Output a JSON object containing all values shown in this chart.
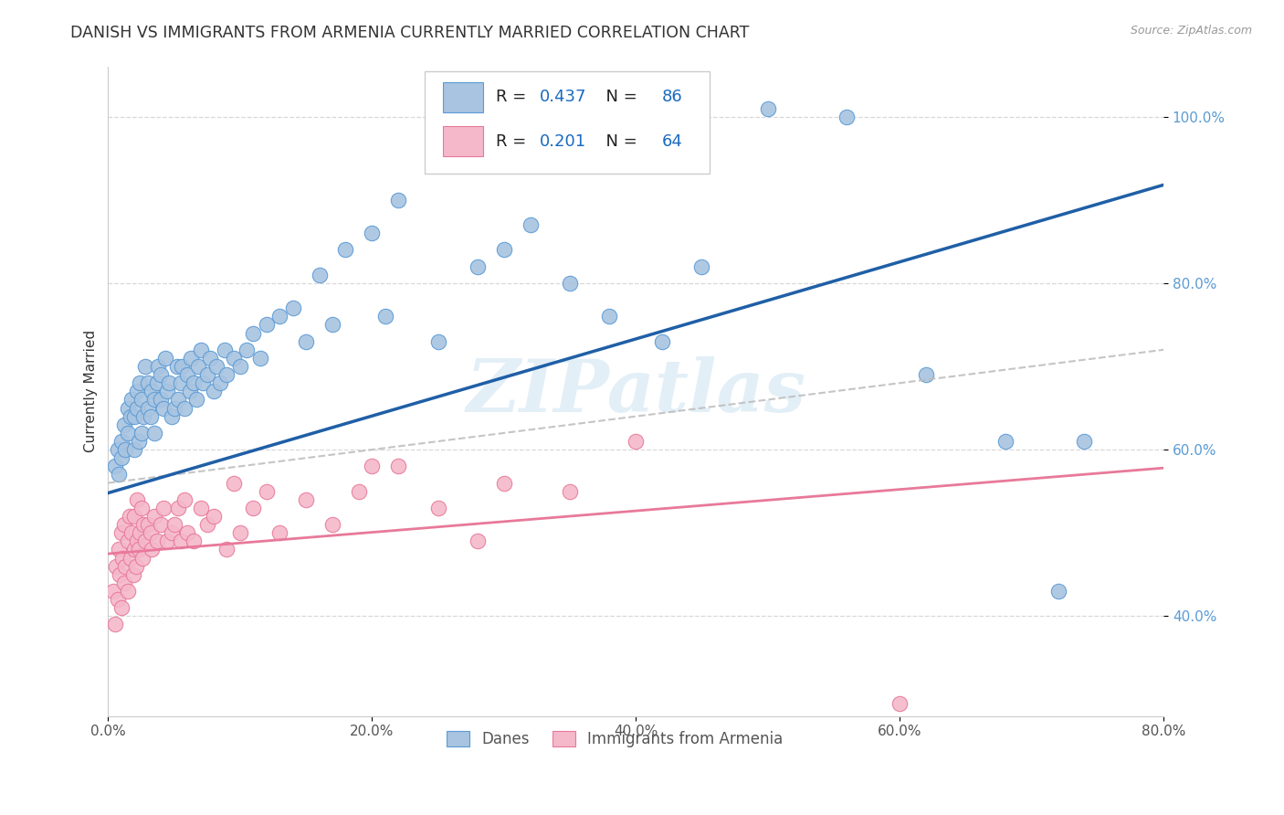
{
  "title": "DANISH VS IMMIGRANTS FROM ARMENIA CURRENTLY MARRIED CORRELATION CHART",
  "source": "Source: ZipAtlas.com",
  "ylabel": "Currently Married",
  "xlim": [
    0.0,
    0.8
  ],
  "ylim": [
    0.28,
    1.06
  ],
  "xtick_positions": [
    0.0,
    0.2,
    0.4,
    0.6,
    0.8
  ],
  "ytick_positions": [
    0.4,
    0.6,
    0.8,
    1.0
  ],
  "danes_color": "#a8c4e0",
  "danes_edge_color": "#5b9bd5",
  "armenia_color": "#f4b8ca",
  "armenia_edge_color": "#e8799a",
  "regression_blue": "#1f5fa6",
  "regression_pink": "#e8799a",
  "regression_gray_dashed": "#bbbbbb",
  "R_danes": 0.437,
  "N_danes": 86,
  "R_armenia": 0.201,
  "N_armenia": 64,
  "watermark": "ZIPatlas",
  "legend_labels": [
    "Danes",
    "Immigrants from Armenia"
  ],
  "blue_line_x0": 0.0,
  "blue_line_y0": 0.548,
  "blue_line_x1": 0.8,
  "blue_line_y1": 0.918,
  "pink_line_x0": 0.0,
  "pink_line_y0": 0.475,
  "pink_line_x1": 0.8,
  "pink_line_y1": 0.578,
  "gray_line_x0": 0.0,
  "gray_line_y0": 0.56,
  "gray_line_x1": 0.8,
  "gray_line_y1": 0.72,
  "danes_x": [
    0.005,
    0.007,
    0.008,
    0.01,
    0.01,
    0.012,
    0.013,
    0.015,
    0.015,
    0.017,
    0.018,
    0.02,
    0.02,
    0.022,
    0.022,
    0.023,
    0.024,
    0.025,
    0.025,
    0.027,
    0.028,
    0.03,
    0.03,
    0.032,
    0.033,
    0.035,
    0.035,
    0.037,
    0.038,
    0.04,
    0.04,
    0.042,
    0.043,
    0.045,
    0.046,
    0.048,
    0.05,
    0.052,
    0.053,
    0.055,
    0.056,
    0.058,
    0.06,
    0.062,
    0.063,
    0.065,
    0.067,
    0.068,
    0.07,
    0.072,
    0.075,
    0.077,
    0.08,
    0.082,
    0.085,
    0.088,
    0.09,
    0.095,
    0.1,
    0.105,
    0.11,
    0.115,
    0.12,
    0.13,
    0.14,
    0.15,
    0.16,
    0.17,
    0.18,
    0.2,
    0.21,
    0.22,
    0.25,
    0.28,
    0.3,
    0.32,
    0.35,
    0.38,
    0.42,
    0.45,
    0.5,
    0.56,
    0.62,
    0.68,
    0.72,
    0.74
  ],
  "danes_y": [
    0.58,
    0.6,
    0.57,
    0.59,
    0.61,
    0.63,
    0.6,
    0.65,
    0.62,
    0.64,
    0.66,
    0.6,
    0.64,
    0.65,
    0.67,
    0.61,
    0.68,
    0.62,
    0.66,
    0.64,
    0.7,
    0.65,
    0.68,
    0.64,
    0.67,
    0.66,
    0.62,
    0.68,
    0.7,
    0.66,
    0.69,
    0.65,
    0.71,
    0.67,
    0.68,
    0.64,
    0.65,
    0.7,
    0.66,
    0.68,
    0.7,
    0.65,
    0.69,
    0.67,
    0.71,
    0.68,
    0.66,
    0.7,
    0.72,
    0.68,
    0.69,
    0.71,
    0.67,
    0.7,
    0.68,
    0.72,
    0.69,
    0.71,
    0.7,
    0.72,
    0.74,
    0.71,
    0.75,
    0.76,
    0.77,
    0.73,
    0.81,
    0.75,
    0.84,
    0.86,
    0.76,
    0.9,
    0.73,
    0.82,
    0.84,
    0.87,
    0.8,
    0.76,
    0.73,
    0.82,
    1.01,
    1.0,
    0.69,
    0.61,
    0.43,
    0.61
  ],
  "armenia_x": [
    0.004,
    0.005,
    0.006,
    0.007,
    0.008,
    0.009,
    0.01,
    0.01,
    0.011,
    0.012,
    0.012,
    0.013,
    0.015,
    0.015,
    0.016,
    0.017,
    0.018,
    0.019,
    0.02,
    0.02,
    0.021,
    0.022,
    0.022,
    0.023,
    0.024,
    0.025,
    0.026,
    0.027,
    0.028,
    0.03,
    0.032,
    0.033,
    0.035,
    0.037,
    0.04,
    0.042,
    0.045,
    0.048,
    0.05,
    0.053,
    0.055,
    0.058,
    0.06,
    0.065,
    0.07,
    0.075,
    0.08,
    0.09,
    0.095,
    0.1,
    0.11,
    0.12,
    0.13,
    0.15,
    0.17,
    0.19,
    0.2,
    0.22,
    0.25,
    0.28,
    0.3,
    0.35,
    0.4,
    0.6
  ],
  "armenia_y": [
    0.43,
    0.39,
    0.46,
    0.42,
    0.48,
    0.45,
    0.5,
    0.41,
    0.47,
    0.44,
    0.51,
    0.46,
    0.49,
    0.43,
    0.52,
    0.47,
    0.5,
    0.45,
    0.48,
    0.52,
    0.46,
    0.49,
    0.54,
    0.48,
    0.5,
    0.53,
    0.47,
    0.51,
    0.49,
    0.51,
    0.5,
    0.48,
    0.52,
    0.49,
    0.51,
    0.53,
    0.49,
    0.5,
    0.51,
    0.53,
    0.49,
    0.54,
    0.5,
    0.49,
    0.53,
    0.51,
    0.52,
    0.48,
    0.56,
    0.5,
    0.53,
    0.55,
    0.5,
    0.54,
    0.51,
    0.55,
    0.58,
    0.58,
    0.53,
    0.49,
    0.56,
    0.55,
    0.61,
    0.295
  ]
}
